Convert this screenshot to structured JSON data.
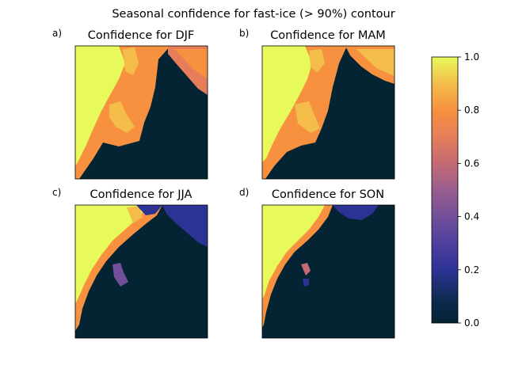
{
  "figure": {
    "title": "Seasonal confidence for fast-ice (> 90%) contour"
  },
  "chart_data": [
    {
      "type": "heatmap",
      "panel_label": "a)",
      "title": "Confidence for DJF",
      "xlabel": "",
      "ylabel": "",
      "ticks": "none"
    },
    {
      "type": "heatmap",
      "panel_label": "b)",
      "title": "Confidence for MAM",
      "xlabel": "",
      "ylabel": "",
      "ticks": "none"
    },
    {
      "type": "heatmap",
      "panel_label": "c)",
      "title": "Confidence for JJA",
      "xlabel": "",
      "ylabel": "",
      "ticks": "none"
    },
    {
      "type": "heatmap",
      "panel_label": "d)",
      "title": "Confidence for SON",
      "xlabel": "",
      "ylabel": "",
      "ticks": "none"
    }
  ],
  "colorbar": {
    "colormap": "thermal",
    "range": [
      0.0,
      1.0
    ],
    "tick_values": [
      0.0,
      0.2,
      0.4,
      0.6,
      0.8,
      1.0
    ],
    "tick_labels": [
      "0.0",
      "0.2",
      "0.4",
      "0.6",
      "0.8",
      "1.0"
    ],
    "colors": {
      "0.0": "#042333",
      "0.2": "#2c3395",
      "0.4": "#734f9a",
      "0.6": "#c56a74",
      "0.8": "#f7913f",
      "1.0": "#e8fa5b"
    }
  }
}
